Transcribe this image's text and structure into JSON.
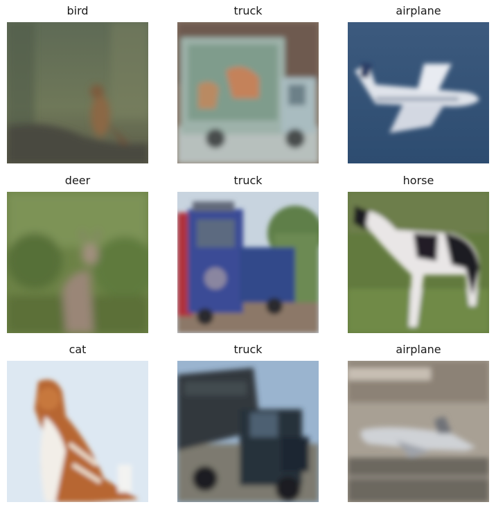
{
  "grid": {
    "images": [
      {
        "label": "bird"
      },
      {
        "label": "truck"
      },
      {
        "label": "airplane"
      },
      {
        "label": "deer"
      },
      {
        "label": "truck"
      },
      {
        "label": "horse"
      },
      {
        "label": "cat"
      },
      {
        "label": "truck"
      },
      {
        "label": "airplane"
      }
    ]
  }
}
